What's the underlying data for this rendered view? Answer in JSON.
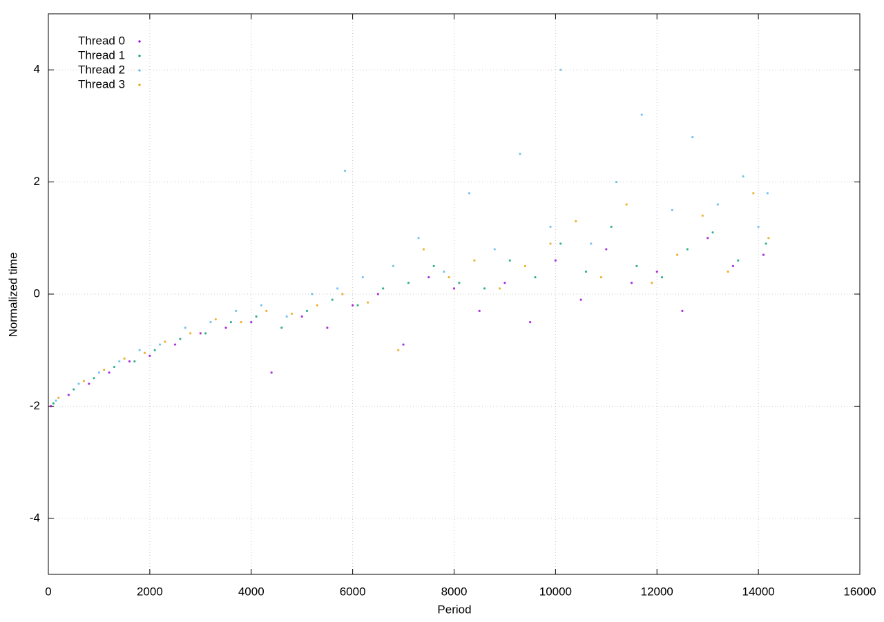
{
  "chart_data": {
    "type": "scatter",
    "xlabel": "Period",
    "ylabel": "Normalized time",
    "xlim": [
      0,
      16000
    ],
    "ylim": [
      -5,
      5
    ],
    "xticks": [
      0,
      2000,
      4000,
      6000,
      8000,
      10000,
      12000,
      14000,
      16000
    ],
    "yticks": [
      -4,
      -2,
      0,
      2,
      4
    ],
    "grid": true,
    "legend": "top-left",
    "series": [
      {
        "name": "Thread 0",
        "color": "#9400d3",
        "x": [
          50,
          400,
          800,
          1200,
          1600,
          2000,
          2500,
          3000,
          3500,
          4000,
          4400,
          5000,
          5500,
          6000,
          6500,
          7000,
          7500,
          8000,
          8500,
          9000,
          9500,
          10000,
          10500,
          11000,
          11500,
          12000,
          12500,
          13000,
          13500,
          14100
        ],
        "values": [
          -2.0,
          -1.8,
          -1.6,
          -1.4,
          -1.2,
          -1.1,
          -0.9,
          -0.7,
          -0.6,
          -0.5,
          -1.4,
          -0.4,
          -0.6,
          -0.2,
          0,
          -0.9,
          0.3,
          0.1,
          -0.3,
          0.2,
          -0.5,
          0.6,
          -0.1,
          0.8,
          0.2,
          0.4,
          -0.3,
          1.0,
          0.5,
          0.7
        ]
      },
      {
        "name": "Thread 1",
        "color": "#009e73",
        "x": [
          100,
          500,
          900,
          1300,
          1700,
          2100,
          2600,
          3100,
          3600,
          4100,
          4600,
          5100,
          5600,
          6100,
          6600,
          7100,
          7600,
          8100,
          8600,
          9100,
          9600,
          10100,
          10600,
          11100,
          11600,
          12100,
          12600,
          13100,
          13600,
          14150
        ],
        "values": [
          -1.95,
          -1.7,
          -1.5,
          -1.3,
          -1.2,
          -1.0,
          -0.8,
          -0.7,
          -0.5,
          -0.4,
          -0.6,
          -0.3,
          -0.1,
          -0.2,
          0.1,
          0.2,
          0.5,
          0.2,
          0.1,
          0.6,
          0.3,
          0.9,
          0.4,
          1.2,
          0.5,
          0.3,
          0.8,
          1.1,
          0.6,
          0.9
        ]
      },
      {
        "name": "Thread 2",
        "color": "#56b4e9",
        "x": [
          150,
          600,
          1000,
          1400,
          1800,
          2200,
          2700,
          3200,
          3700,
          4200,
          4700,
          5200,
          5700,
          5850,
          6200,
          6800,
          7300,
          7800,
          8300,
          8800,
          9300,
          9900,
          10100,
          10700,
          11200,
          11700,
          12300,
          12700,
          13200,
          13700,
          14000,
          14180
        ],
        "values": [
          -1.9,
          -1.6,
          -1.4,
          -1.2,
          -1.0,
          -0.9,
          -0.6,
          -0.5,
          -0.3,
          -0.2,
          -0.4,
          0.0,
          0.1,
          2.2,
          0.3,
          0.5,
          1.0,
          0.4,
          1.8,
          0.8,
          2.5,
          1.2,
          4.0,
          0.9,
          2.0,
          3.2,
          1.5,
          2.8,
          1.6,
          2.1,
          1.2,
          1.8
        ]
      },
      {
        "name": "Thread 3",
        "color": "#e69f00",
        "x": [
          200,
          700,
          1100,
          1500,
          1900,
          2300,
          2800,
          3300,
          3800,
          4300,
          4800,
          5300,
          5800,
          6300,
          6900,
          7400,
          7900,
          8400,
          8900,
          9400,
          9900,
          10400,
          10900,
          11400,
          11900,
          12400,
          12900,
          13400,
          13900,
          14200
        ],
        "values": [
          -1.85,
          -1.55,
          -1.35,
          -1.15,
          -1.05,
          -0.85,
          -0.7,
          -0.45,
          -0.5,
          -0.3,
          -0.35,
          -0.2,
          0.0,
          -0.15,
          -1.0,
          0.8,
          0.3,
          0.6,
          0.1,
          0.5,
          0.9,
          1.3,
          0.3,
          1.6,
          0.2,
          0.7,
          1.4,
          0.4,
          1.8,
          1.0
        ]
      }
    ]
  }
}
